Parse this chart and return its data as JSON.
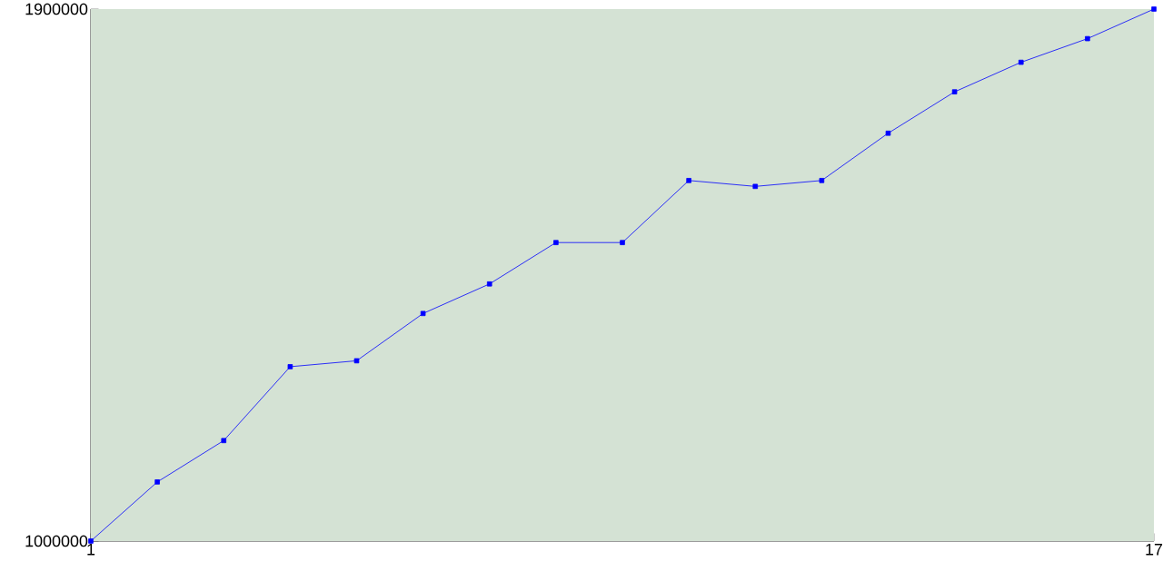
{
  "chart_data": {
    "type": "line",
    "x": [
      1,
      2,
      3,
      4,
      5,
      6,
      7,
      8,
      9,
      10,
      11,
      12,
      13,
      14,
      15,
      16,
      17
    ],
    "values": [
      1000000,
      1100000,
      1170000,
      1295000,
      1305000,
      1385000,
      1435000,
      1505000,
      1505000,
      1610000,
      1600000,
      1610000,
      1690000,
      1760000,
      1810000,
      1850000,
      1900000
    ],
    "color": "#0000ff",
    "marker": "square",
    "xlim": [
      1,
      17
    ],
    "ylim": [
      1000000,
      1900000
    ],
    "xticks": [
      1,
      17
    ],
    "yticks": [
      1000000,
      1900000
    ],
    "grid": false
  }
}
